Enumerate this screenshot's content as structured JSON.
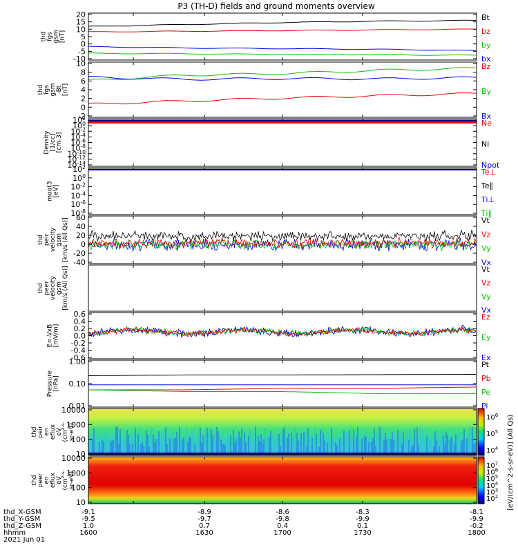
{
  "title": "P3 (TH-D) fields and ground moments overview",
  "panels": [
    {
      "id": "fgs",
      "ylabel": [
        "thd",
        "fgs",
        "gsm",
        "[nT]"
      ],
      "ticks": [
        "20",
        "15",
        "10",
        "5",
        "0",
        "-5",
        "-10"
      ],
      "ylim": [
        -14,
        21
      ],
      "legend": [
        {
          "label": "Bt",
          "color": "#000000"
        },
        {
          "label": "bz",
          "color": "#e00000"
        },
        {
          "label": "by",
          "color": "#00c000"
        },
        {
          "label": "bx",
          "color": "#0000e0"
        }
      ]
    },
    {
      "id": "fgs_dsl",
      "ylabel": [
        "thd",
        "fgs",
        "gsm",
        "-Bt",
        "[nT]"
      ],
      "ticks": [
        "10",
        "8",
        "6",
        "4",
        "2",
        "0",
        "-2"
      ],
      "ylim": [
        -3.5,
        10
      ],
      "legend": [
        {
          "label": "Bz",
          "color": "#e00000"
        },
        {
          "label": "By",
          "color": "#00c000"
        },
        {
          "label": "Bx",
          "color": "#0000e0"
        }
      ]
    },
    {
      "id": "density",
      "ylabel": [
        "Density",
        "[1/cc]",
        "[cm-3]"
      ],
      "ticks": [
        "10^2",
        "10^0",
        "10^-2",
        "10^-4",
        "10^-6",
        "10^-8",
        "10^-10",
        "10^-12",
        "10^-14"
      ],
      "ylim": [
        1e-15,
        100.0
      ],
      "log": true,
      "legend": [
        {
          "label": "Ne",
          "color": "#e00000"
        },
        {
          "label": "Ni",
          "color": "#000000"
        },
        {
          "label": "Npot",
          "color": "#0000e0"
        }
      ]
    },
    {
      "id": "temp",
      "ylabel": [
        "moqt3",
        "[eV]"
      ],
      "ticks": [
        "10^2",
        "10^0",
        "10^-2",
        "10^-4",
        "10^-6",
        "10^-8"
      ],
      "ylim": [
        1e-09,
        100.0
      ],
      "log": true,
      "legend": [
        {
          "label": "Te⊥",
          "color": "#e00000"
        },
        {
          "label": "Te∥",
          "color": "#000000"
        },
        {
          "label": "Ti⊥",
          "color": "#0000e0"
        },
        {
          "label": "Ti∥",
          "color": "#00c000"
        }
      ]
    },
    {
      "id": "ivel",
      "ylabel": [
        "thd",
        "peir",
        "velocity",
        "gsm",
        "[km/s (All Qs)]"
      ],
      "ticks": [
        "60",
        "40",
        "20",
        "0",
        "-20",
        "-40"
      ],
      "ylim": [
        -40,
        60
      ],
      "legend": [
        {
          "label": "Vt",
          "color": "#000000"
        },
        {
          "label": "Vz",
          "color": "#e00000"
        },
        {
          "label": "Vy",
          "color": "#00c000"
        },
        {
          "label": "Vx",
          "color": "#0000e0"
        }
      ]
    },
    {
      "id": "evel",
      "ylabel": [
        "thd",
        "peer",
        "velocity",
        "gsm",
        "[km/s (All Qs)]"
      ],
      "ticks": [],
      "ylim": [
        -1,
        1
      ],
      "legend": [
        {
          "label": "Vt",
          "color": "#000000"
        },
        {
          "label": "Vz",
          "color": "#e00000"
        },
        {
          "label": "Vy",
          "color": "#00c000"
        },
        {
          "label": "Vx",
          "color": "#0000e0"
        }
      ]
    },
    {
      "id": "efield",
      "ylabel": [
        "E=-VxB",
        "[mV/m]"
      ],
      "ticks": [
        "0.6",
        "0.4",
        "0.2",
        "0.0",
        "-0.2",
        "-0.4",
        "-0.6"
      ],
      "ylim": [
        -0.65,
        0.6
      ],
      "legend": [
        {
          "label": "Ez",
          "color": "#e00000"
        },
        {
          "label": "Ey",
          "color": "#00c000"
        },
        {
          "label": "Ex",
          "color": "#0000e0"
        }
      ]
    },
    {
      "id": "pressure",
      "ylabel": [
        "Pressure",
        "[nPa]"
      ],
      "ticks": [
        "1.00",
        "0.10",
        "0.01"
      ],
      "ylim": [
        0.01,
        1.3
      ],
      "log": true,
      "legend": [
        {
          "label": "Pt",
          "color": "#000000"
        },
        {
          "label": "Pb",
          "color": "#e00000"
        },
        {
          "label": "Pe",
          "color": "#00c000"
        },
        {
          "label": "Pi",
          "color": "#0000e0"
        }
      ]
    },
    {
      "id": "ispec",
      "ylabel": [
        "thd",
        "peir",
        "en",
        "eflux",
        "eV",
        "(cm^2-s-",
        "sr-eV)"
      ],
      "ticks": [
        "10000",
        "1000",
        "100",
        "10"
      ],
      "ylim": [
        6,
        20000
      ],
      "log": true,
      "legend": []
    },
    {
      "id": "espec",
      "ylabel": [
        "thd",
        "peer",
        "en",
        "eflux",
        "eV",
        "(cm^2-s-",
        "sr-eV)"
      ],
      "ticks": [
        "10000",
        "1000",
        "100",
        "10"
      ],
      "ylim": [
        6,
        20000
      ],
      "log": true,
      "legend": []
    }
  ],
  "colorbars": [
    {
      "ticks": [
        "10^6",
        "10^5",
        "10^4"
      ]
    },
    {
      "ticks": [
        "10^7",
        "10^6",
        "10^5",
        "10^4",
        "10^3",
        "10^2"
      ]
    }
  ],
  "colorbar_label": "[eV/(cm^2-s-sr-eV)] (All Qs)",
  "xaxis": {
    "rows": [
      {
        "label": "thd_X-GSM",
        "values": [
          "-9.1",
          "-8.9",
          "-8.6",
          "-8.3",
          "-8.1"
        ]
      },
      {
        "label": "thd_Y-GSM",
        "values": [
          "-9.5",
          "-9.7",
          "-9.8",
          "-9.9",
          "-9.9"
        ]
      },
      {
        "label": "thd_Z-GSM",
        "values": [
          "1.0",
          "0.7",
          "0.4",
          "0.1",
          "-0.2"
        ]
      },
      {
        "label": "hhmm",
        "values": [
          "1600",
          "1630",
          "1700",
          "1730",
          "1800"
        ]
      }
    ],
    "date": "2021 Jun 01"
  },
  "chart_data": {
    "type": "line",
    "title": "P3 (TH-D) fields and ground moments overview",
    "x": [
      "1600",
      "1630",
      "1700",
      "1730",
      "1800"
    ],
    "series": [
      {
        "name": "Bt",
        "values": [
          11,
          12.5,
          14,
          15,
          15.5
        ]
      },
      {
        "name": "bz",
        "values": [
          7,
          7.5,
          8,
          8.5,
          9
        ]
      },
      {
        "name": "by",
        "values": [
          -9,
          -9.3,
          -9.8,
          -10,
          -10.5
        ]
      },
      {
        "name": "bx",
        "values": [
          -4,
          -5,
          -5.5,
          -6,
          -7
        ]
      },
      {
        "name": "Bz",
        "values": [
          -0.3,
          0.5,
          1.2,
          1.8,
          2.3
        ]
      },
      {
        "name": "By",
        "values": [
          5.5,
          6.8,
          7.2,
          8,
          8.5
        ]
      },
      {
        "name": "Bx",
        "values": [
          6.3,
          5.8,
          6,
          5.9,
          6.2
        ]
      },
      {
        "name": "Pt",
        "values": [
          0.26,
          0.28,
          0.28,
          0.29,
          0.3
        ]
      },
      {
        "name": "Pb",
        "values": [
          0.06,
          0.06,
          0.07,
          0.07,
          0.08
        ]
      },
      {
        "name": "Pe",
        "values": [
          0.06,
          0.05,
          0.05,
          0.04,
          0.04
        ]
      },
      {
        "name": "Pi",
        "values": [
          0.1,
          0.1,
          0.1,
          0.1,
          0.1
        ]
      }
    ]
  }
}
